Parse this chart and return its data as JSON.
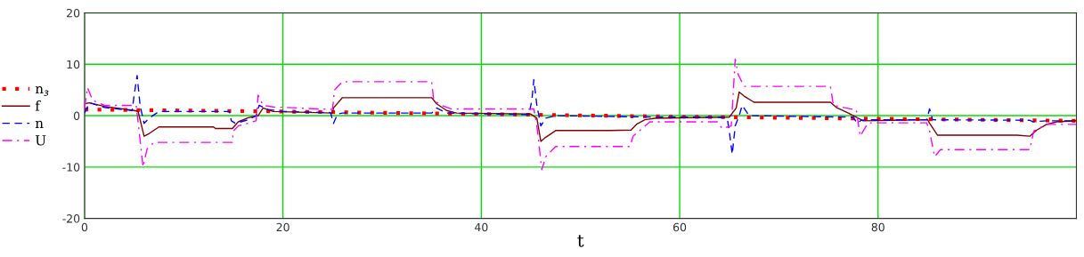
{
  "chart_data": {
    "type": "line",
    "xlabel": "t",
    "xlim": [
      0,
      100
    ],
    "xticks": [
      0,
      20,
      40,
      60,
      80
    ],
    "ylim": [
      -20,
      20
    ],
    "yticks": [
      -20,
      -10,
      0,
      10,
      20
    ],
    "grid": true,
    "legend": "left",
    "marker": "none",
    "series": [
      {
        "name": "n$_{з}$",
        "color": "#ff0000",
        "line_style": "dotted",
        "x": [
          0,
          20,
          40,
          60,
          80,
          100
        ],
        "values": [
          1.2,
          0.8,
          0.3,
          -0.2,
          -0.6,
          -1.0
        ]
      },
      {
        "name": "f",
        "color": "#800000",
        "line_style": "solid",
        "x": [
          0,
          0.5,
          2,
          5,
          5.4,
          6,
          6.5,
          7.5,
          13,
          13.2,
          14.9,
          15.5,
          16.5,
          17.5,
          18,
          19,
          25,
          25.1,
          26,
          35,
          35.5,
          36.5,
          37.5,
          45,
          45.6,
          46,
          46.5,
          47.5,
          53,
          55.1,
          55.7,
          56.5,
          57.5,
          65,
          65.7,
          66,
          66.5,
          67.5,
          75.2,
          75.8,
          77,
          78,
          78.5,
          85,
          85.2,
          86,
          94,
          95.3,
          96,
          97,
          98,
          100
        ],
        "values": [
          2.3,
          2.5,
          1.8,
          1.0,
          0.8,
          -4.0,
          -3.5,
          -2.2,
          -2.2,
          -2.5,
          -2.5,
          -1.2,
          -0.4,
          0.0,
          1.5,
          0.8,
          0.5,
          1.5,
          3.5,
          3.5,
          2.3,
          1.0,
          0.5,
          0.3,
          -0.5,
          -5.0,
          -4.2,
          -2.9,
          -2.9,
          -2.8,
          -1.6,
          -0.8,
          -0.5,
          -0.3,
          1.5,
          4.6,
          3.8,
          2.6,
          2.6,
          1.6,
          0.5,
          -0.5,
          -1.0,
          -0.8,
          -1.5,
          -3.8,
          -3.8,
          -4.0,
          -2.8,
          -1.7,
          -1.2,
          -1.0
        ]
      },
      {
        "name": "n",
        "color": "#0000ff",
        "line_style": "dashed",
        "x": [
          0,
          0.5,
          2,
          4.8,
          5.0,
          5.3,
          5.6,
          6.0,
          6.5,
          7.5,
          14.6,
          14.8,
          15.2,
          16.5,
          17.3,
          17.6,
          18.5,
          20,
          24.8,
          25.1,
          25.5,
          26,
          35,
          35.5,
          36.5,
          44.8,
          45.1,
          45.3,
          45.6,
          46,
          46.5,
          47.5,
          54.8,
          55.0,
          55.4,
          57.5,
          64.2,
          64.8,
          65.0,
          65.3,
          65.6,
          66.0,
          66.3,
          67,
          77.5,
          77.9,
          78.3,
          79,
          84.9,
          85.2,
          85.5,
          95.3,
          95.6,
          97,
          100
        ],
        "values": [
          0.5,
          2.5,
          1.6,
          1.0,
          4.0,
          7.8,
          2.0,
          -1.5,
          -0.5,
          0.8,
          0.8,
          -1.0,
          -1.5,
          -0.8,
          0.0,
          2.0,
          1.2,
          0.8,
          0.6,
          -1.5,
          0.3,
          0.5,
          0.5,
          1.5,
          0.5,
          0.2,
          3.0,
          7.0,
          2.0,
          -2.0,
          -0.5,
          0.0,
          -0.2,
          -0.5,
          -0.2,
          -0.3,
          -0.3,
          -0.5,
          -3.0,
          -7.5,
          -2.0,
          0.0,
          2.0,
          0.0,
          -0.3,
          -1.5,
          -0.9,
          -0.8,
          -0.8,
          1.3,
          -0.8,
          -0.9,
          -1.2,
          -1.0,
          -1.0
        ]
      },
      {
        "name": "U",
        "color": "#ff00ff",
        "line_style": "dashdot",
        "x": [
          0,
          0.3,
          0.8,
          2,
          5.2,
          5.5,
          5.9,
          6.3,
          7.0,
          14.9,
          15.0,
          15.5,
          17.3,
          17.5,
          18,
          19,
          25.0,
          25.2,
          26,
          35,
          35.2,
          36,
          37,
          45.3,
          45.6,
          46.1,
          46.5,
          47.5,
          55.0,
          55.3,
          57,
          63.8,
          64.3,
          65.2,
          65.6,
          65.9,
          66.5,
          67.5,
          75.2,
          75.5,
          77.5,
          77.8,
          78.2,
          79,
          84.9,
          85.2,
          85.7,
          86.3,
          95.3,
          95.7,
          97,
          100
        ],
        "values": [
          1.5,
          5.5,
          3.0,
          2.0,
          2.0,
          -3.0,
          -10.0,
          -6.5,
          -5.2,
          -5.2,
          -3.0,
          -2.0,
          -1.0,
          4.0,
          2.0,
          1.7,
          1.2,
          5.0,
          6.6,
          6.6,
          3.0,
          2.0,
          1.3,
          1.3,
          -2.0,
          -10.5,
          -8.0,
          -6.0,
          -6.0,
          -4.0,
          -1.2,
          -1.2,
          -2.5,
          -2.0,
          11.0,
          8.0,
          5.7,
          5.7,
          5.7,
          2.0,
          1.2,
          1.2,
          -4.0,
          -1.4,
          -1.4,
          -3.0,
          -8.0,
          -6.6,
          -6.6,
          -3.0,
          -1.7,
          -1.7
        ]
      }
    ]
  }
}
